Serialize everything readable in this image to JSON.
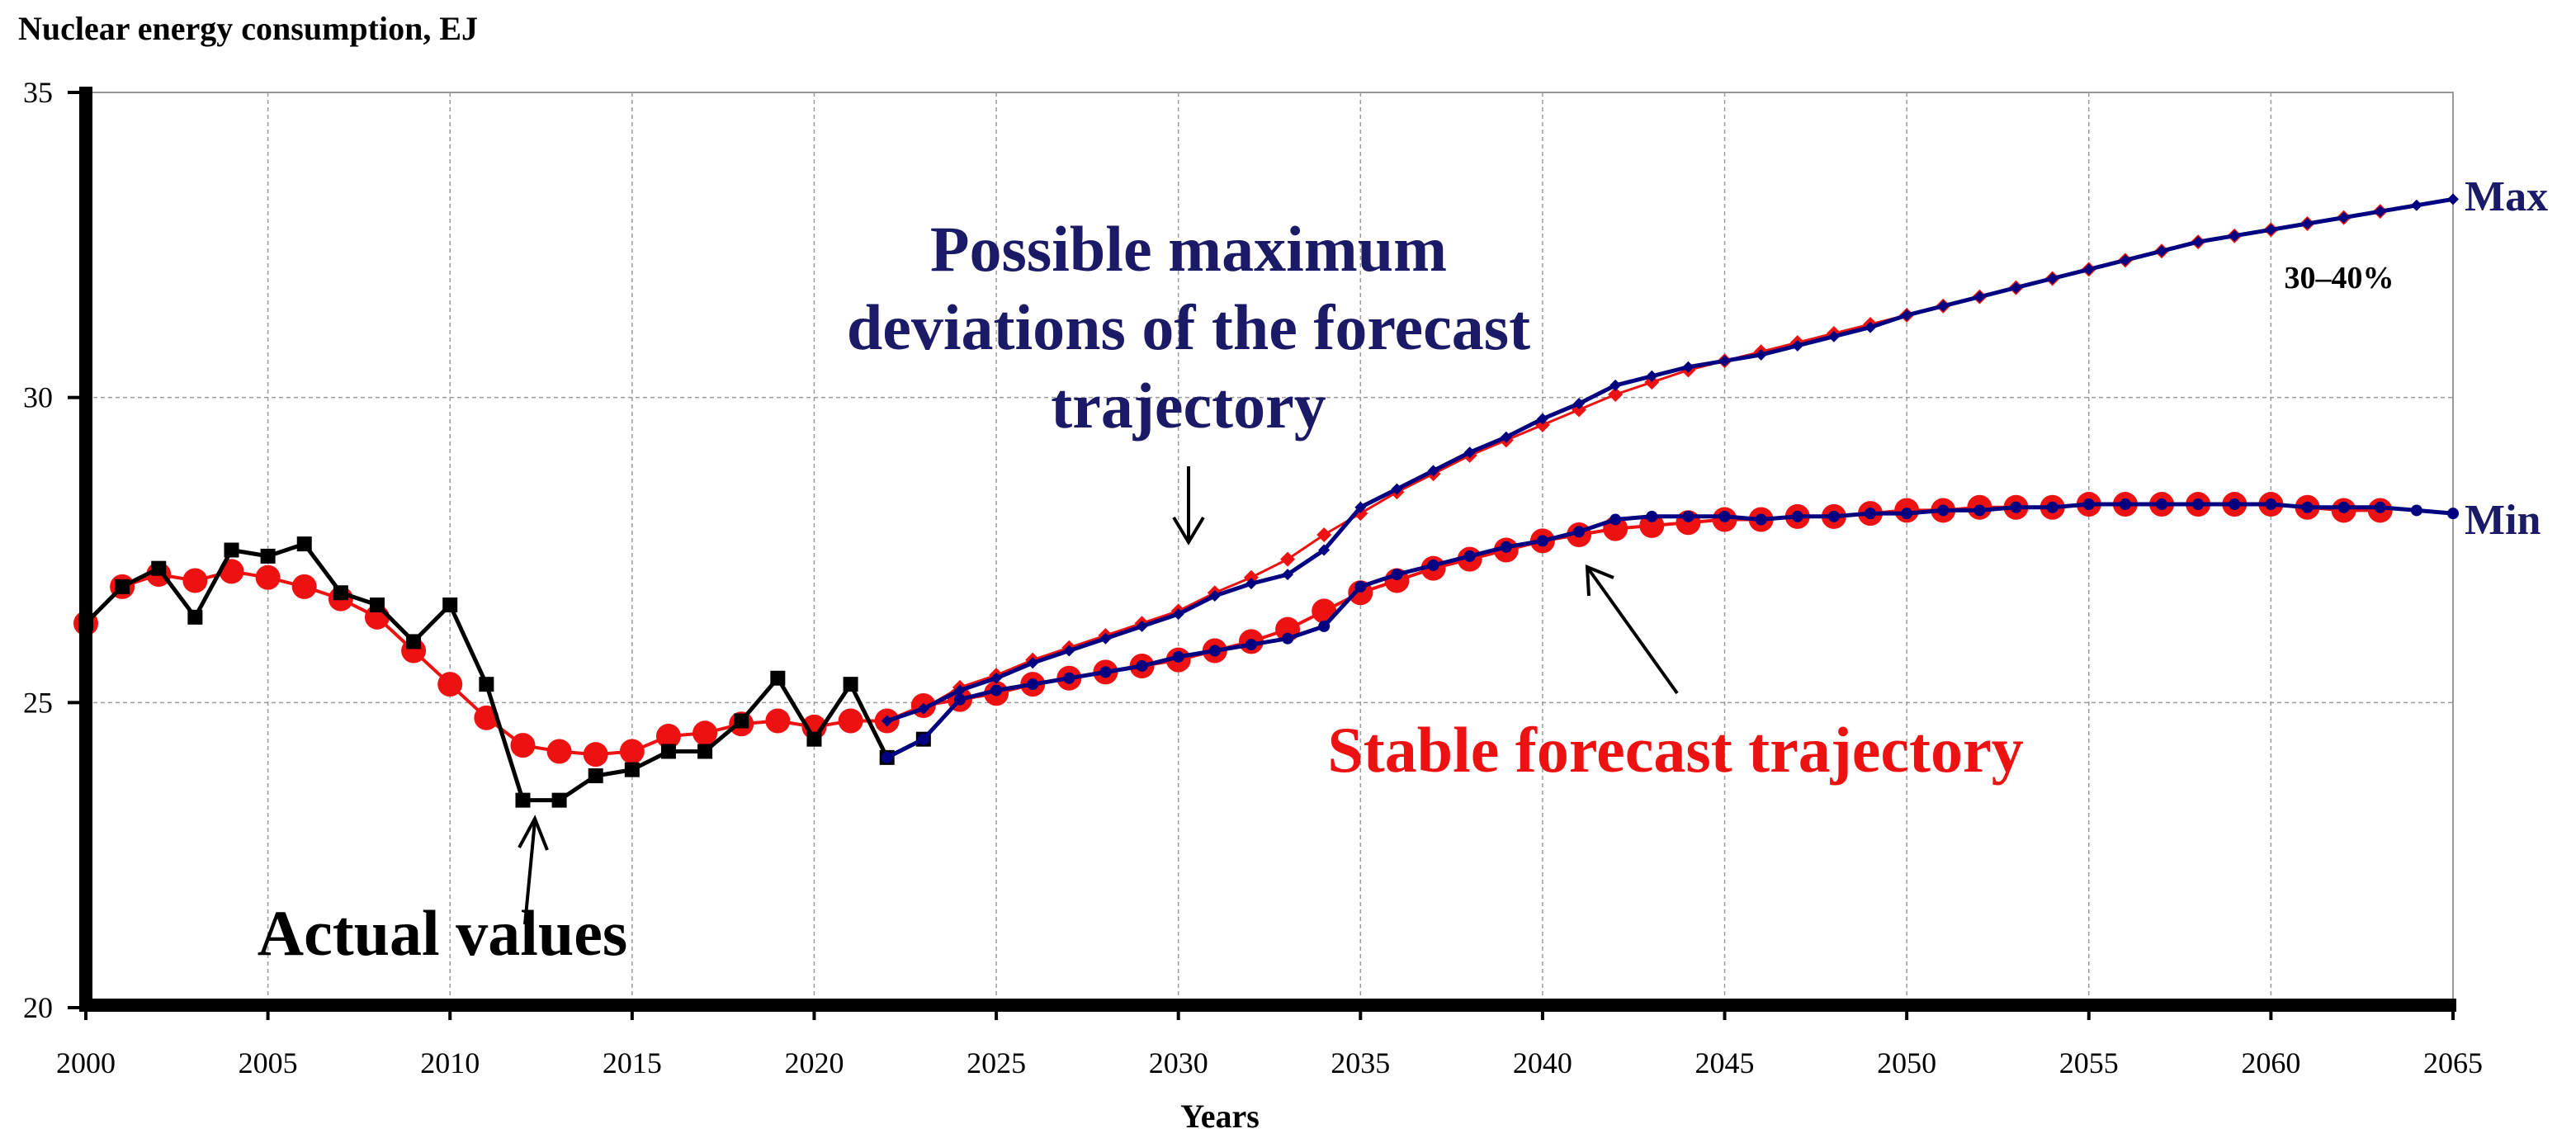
{
  "chart_data": {
    "type": "line",
    "title": "Nuclear energy consumption, EJ",
    "xlabel": "Years",
    "ylabel": "Nuclear energy consumption, EJ",
    "xlim": [
      2000,
      2065
    ],
    "ylim": [
      20,
      35
    ],
    "x_ticks": [
      "2000",
      "2005",
      "2010",
      "2015",
      "2020",
      "2025",
      "2030",
      "2035",
      "2040",
      "2045",
      "2050",
      "2055",
      "2060",
      "2065"
    ],
    "y_ticks": [
      "20",
      "25",
      "30",
      "35"
    ],
    "grid": true,
    "colors": {
      "actual": "#000000",
      "stable": "#ee1111",
      "deviation": "#000080",
      "annotation_blue": "#1a1a66"
    },
    "series": [
      {
        "name": "Actual values",
        "color": "#000000",
        "marker": "square",
        "x": [
          2000,
          2001,
          2002,
          2003,
          2004,
          2005,
          2006,
          2007,
          2008,
          2009,
          2010,
          2011,
          2012,
          2013,
          2014,
          2015,
          2016,
          2017,
          2018,
          2019,
          2020,
          2021,
          2022,
          2023
        ],
        "values": [
          26.3,
          26.9,
          27.2,
          26.4,
          27.5,
          27.4,
          27.6,
          26.8,
          26.6,
          26.0,
          26.6,
          25.3,
          23.4,
          23.4,
          23.8,
          23.9,
          24.2,
          24.2,
          24.7,
          25.4,
          24.4,
          25.3,
          24.1,
          24.4
        ]
      },
      {
        "name": "Stable forecast trajectory",
        "color": "#ee1111",
        "marker": "circle",
        "x": [
          2000,
          2001,
          2002,
          2003,
          2004,
          2005,
          2006,
          2007,
          2008,
          2009,
          2010,
          2011,
          2012,
          2013,
          2014,
          2015,
          2016,
          2017,
          2018,
          2019,
          2020,
          2021,
          2022,
          2023,
          2024,
          2025,
          2026,
          2027,
          2028,
          2029,
          2030,
          2031,
          2032,
          2033,
          2034,
          2035,
          2036,
          2037,
          2038,
          2039,
          2040,
          2041,
          2042,
          2043,
          2044,
          2045,
          2046,
          2047,
          2048,
          2049,
          2050,
          2051,
          2052,
          2053,
          2054,
          2055,
          2056,
          2057,
          2058,
          2059,
          2060,
          2061,
          2062,
          2063
        ],
        "values": [
          26.3,
          26.9,
          27.1,
          27.0,
          27.15,
          27.05,
          26.9,
          26.7,
          26.4,
          25.85,
          25.3,
          24.75,
          24.3,
          24.2,
          24.15,
          24.2,
          24.45,
          24.5,
          24.65,
          24.7,
          24.6,
          24.7,
          24.7,
          24.95,
          25.05,
          25.15,
          25.3,
          25.4,
          25.5,
          25.6,
          25.7,
          25.85,
          26.0,
          26.2,
          26.5,
          26.8,
          27.0,
          27.2,
          27.35,
          27.5,
          27.65,
          27.75,
          27.85,
          27.9,
          27.95,
          28.0,
          28.0,
          28.05,
          28.05,
          28.1,
          28.15,
          28.15,
          28.2,
          28.2,
          28.2,
          28.25,
          28.25,
          28.25,
          28.25,
          28.25,
          28.25,
          28.2,
          28.15,
          28.15
        ]
      },
      {
        "name": "Max deviation",
        "color": "#000080",
        "marker": "diamond",
        "end_label": "Max",
        "x": [
          2022,
          2023,
          2024,
          2025,
          2026,
          2027,
          2028,
          2029,
          2030,
          2031,
          2032,
          2033,
          2034,
          2035,
          2036,
          2037,
          2038,
          2039,
          2040,
          2041,
          2042,
          2043,
          2044,
          2045,
          2046,
          2047,
          2048,
          2049,
          2050,
          2051,
          2052,
          2053,
          2054,
          2055,
          2056,
          2057,
          2058,
          2059,
          2060,
          2061,
          2062,
          2063,
          2064,
          2065
        ],
        "values": [
          24.7,
          24.9,
          25.2,
          25.4,
          25.65,
          25.85,
          26.05,
          26.25,
          26.45,
          26.75,
          26.95,
          27.1,
          27.5,
          28.2,
          28.5,
          28.8,
          29.1,
          29.35,
          29.65,
          29.9,
          30.2,
          30.35,
          30.5,
          30.6,
          30.7,
          30.85,
          31.0,
          31.15,
          31.35,
          31.5,
          31.65,
          31.8,
          31.95,
          32.1,
          32.25,
          32.4,
          32.55,
          32.65,
          32.75,
          32.85,
          32.95,
          33.05,
          33.15,
          33.25
        ]
      },
      {
        "name": "Max deviation (stable-model markers)",
        "color": "#ee1111",
        "marker": "diamond",
        "x": [
          2022,
          2023,
          2024,
          2025,
          2026,
          2027,
          2028,
          2029,
          2030,
          2031,
          2032,
          2033,
          2034,
          2035,
          2036,
          2037,
          2038,
          2039,
          2040,
          2041,
          2042,
          2043,
          2044,
          2045,
          2046,
          2047,
          2048,
          2049,
          2050,
          2051,
          2052,
          2053,
          2054,
          2055,
          2056,
          2057,
          2058,
          2059,
          2060,
          2061,
          2062,
          2063
        ],
        "values": [
          24.7,
          24.9,
          25.25,
          25.45,
          25.7,
          25.9,
          26.1,
          26.3,
          26.5,
          26.8,
          27.05,
          27.35,
          27.75,
          28.1,
          28.45,
          28.75,
          29.05,
          29.3,
          29.55,
          29.8,
          30.05,
          30.25,
          30.45,
          30.6,
          30.75,
          30.9,
          31.05,
          31.2,
          31.35,
          31.5,
          31.65,
          31.8,
          31.95,
          32.1,
          32.25,
          32.4,
          32.55,
          32.65,
          32.75,
          32.85,
          32.95,
          33.05
        ]
      },
      {
        "name": "Min deviation",
        "color": "#000080",
        "marker": "circle",
        "end_label": "Min",
        "x": [
          2022,
          2023,
          2024,
          2025,
          2026,
          2027,
          2028,
          2029,
          2030,
          2031,
          2032,
          2033,
          2034,
          2035,
          2036,
          2037,
          2038,
          2039,
          2040,
          2041,
          2042,
          2043,
          2044,
          2045,
          2046,
          2047,
          2048,
          2049,
          2050,
          2051,
          2052,
          2053,
          2054,
          2055,
          2056,
          2057,
          2058,
          2059,
          2060,
          2061,
          2062,
          2063,
          2064,
          2065
        ],
        "values": [
          24.1,
          24.4,
          25.05,
          25.2,
          25.3,
          25.4,
          25.5,
          25.6,
          25.75,
          25.85,
          25.95,
          26.05,
          26.25,
          26.9,
          27.1,
          27.25,
          27.4,
          27.55,
          27.65,
          27.8,
          28.0,
          28.05,
          28.05,
          28.05,
          28.0,
          28.05,
          28.05,
          28.1,
          28.1,
          28.15,
          28.15,
          28.2,
          28.2,
          28.25,
          28.25,
          28.25,
          28.25,
          28.25,
          28.25,
          28.2,
          28.2,
          28.2,
          28.15,
          28.1
        ]
      }
    ],
    "annotations": {
      "max_dev": [
        "Possible maximum",
        "deviations of the forecast",
        "trajectory"
      ],
      "stable": "Stable forecast trajectory",
      "actual": "Actual values",
      "range": "30–40%",
      "max_label": "Max",
      "min_label": "Min"
    }
  }
}
